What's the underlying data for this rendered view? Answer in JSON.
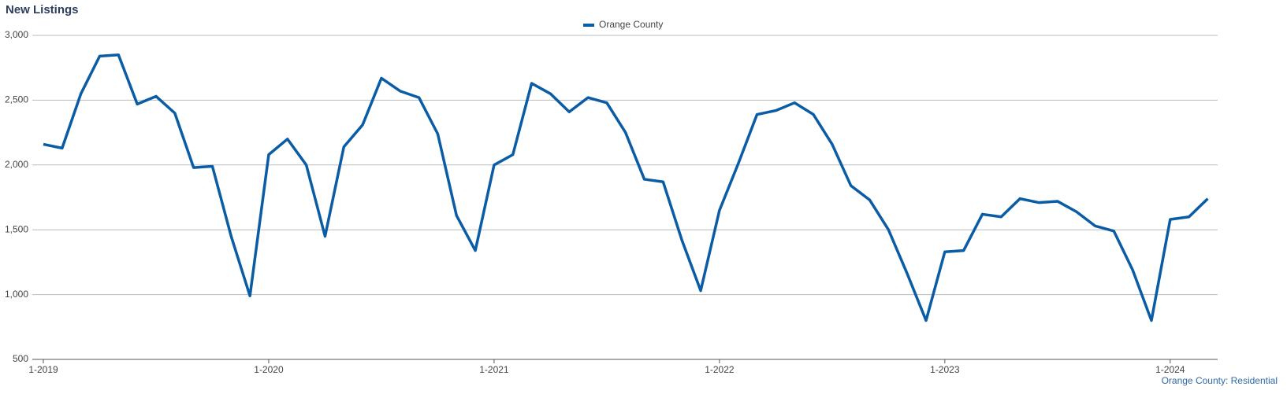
{
  "chart_data": {
    "type": "line",
    "title": "New Listings",
    "footer": "Orange County: Residential",
    "categories": [
      "1-2019",
      null,
      null,
      null,
      null,
      null,
      null,
      null,
      null,
      null,
      null,
      null,
      "1-2020",
      null,
      null,
      null,
      null,
      null,
      null,
      null,
      null,
      null,
      null,
      null,
      "1-2021",
      null,
      null,
      null,
      null,
      null,
      null,
      null,
      null,
      null,
      null,
      null,
      "1-2022",
      null,
      null,
      null,
      null,
      null,
      null,
      null,
      null,
      null,
      null,
      null,
      "1-2023",
      null,
      null,
      null,
      null,
      null,
      null,
      null,
      null,
      null,
      null,
      null,
      "1-2024",
      null,
      null
    ],
    "series": [
      {
        "name": "Orange County",
        "color": "#0a5ca5",
        "values": [
          2160,
          2130,
          2550,
          2840,
          2850,
          2470,
          2530,
          2400,
          1980,
          1990,
          1450,
          990,
          2080,
          2200,
          2000,
          1450,
          2140,
          2310,
          2670,
          2570,
          2520,
          2240,
          1610,
          1340,
          2000,
          2080,
          2630,
          2550,
          2410,
          2520,
          2480,
          2250,
          1890,
          1870,
          1420,
          1030,
          1650,
          2010,
          2390,
          2420,
          2480,
          2390,
          2160,
          1840,
          1730,
          1500,
          1160,
          800,
          1330,
          1340,
          1620,
          1600,
          1740,
          1710,
          1720,
          1640,
          1530,
          1490,
          1190,
          800,
          1580,
          1600,
          1740
        ]
      }
    ],
    "ylim": [
      500,
      3000
    ],
    "yticks": [
      {
        "value": 500,
        "label": "500"
      },
      {
        "value": 1000,
        "label": "1,000"
      },
      {
        "value": 1500,
        "label": "1,500"
      },
      {
        "value": 2000,
        "label": "2,000"
      },
      {
        "value": 2500,
        "label": "2,500"
      },
      {
        "value": 3000,
        "label": "3,000"
      }
    ],
    "grid": true
  }
}
